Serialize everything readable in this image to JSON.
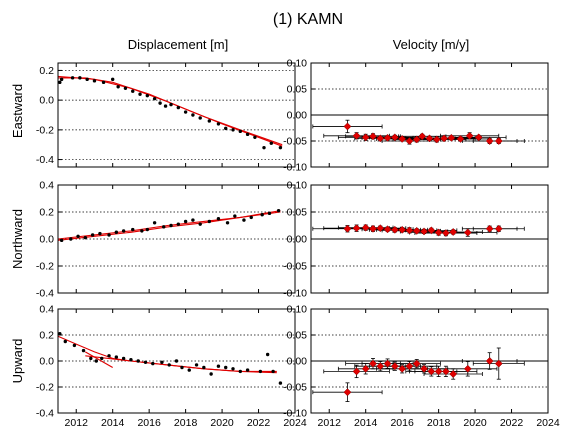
{
  "title": "(1) KAMN",
  "column_titles": [
    "Displacement [m]",
    "Velocity [m/y]"
  ],
  "row_labels": [
    "Eastward",
    "Northward",
    "Upward"
  ],
  "colors": {
    "points": "#000000",
    "fit": "#e00000",
    "marker": "#e00000",
    "errorbar": "#000000"
  },
  "chart_data": [
    {
      "type": "scatter",
      "panel": "Eastward displacement",
      "row": "Eastward",
      "column": "Displacement [m]",
      "xlim": [
        2011,
        2024
      ],
      "ylim": [
        -0.45,
        0.25
      ],
      "xticks": [
        2012,
        2014,
        2016,
        2018,
        2020,
        2022,
        2024
      ],
      "yticks": [
        -0.4,
        -0.2,
        0.0,
        0.2
      ],
      "ytick_labels": [
        "-0.4",
        "-0.2",
        "0.0",
        "0.2"
      ],
      "points": [
        [
          2011.1,
          0.12
        ],
        [
          2011.2,
          0.14
        ],
        [
          2011.8,
          0.15
        ],
        [
          2012.2,
          0.15
        ],
        [
          2012.6,
          0.14
        ],
        [
          2013.0,
          0.13
        ],
        [
          2013.5,
          0.12
        ],
        [
          2014.0,
          0.14
        ],
        [
          2014.3,
          0.09
        ],
        [
          2014.7,
          0.08
        ],
        [
          2015.1,
          0.06
        ],
        [
          2015.5,
          0.04
        ],
        [
          2015.9,
          0.03
        ],
        [
          2016.3,
          0.01
        ],
        [
          2016.6,
          -0.02
        ],
        [
          2016.9,
          -0.04
        ],
        [
          2017.2,
          -0.03
        ],
        [
          2017.6,
          -0.05
        ],
        [
          2018.0,
          -0.08
        ],
        [
          2018.4,
          -0.1
        ],
        [
          2018.8,
          -0.12
        ],
        [
          2019.3,
          -0.14
        ],
        [
          2019.8,
          -0.16
        ],
        [
          2020.2,
          -0.19
        ],
        [
          2020.6,
          -0.2
        ],
        [
          2021.0,
          -0.21
        ],
        [
          2021.4,
          -0.23
        ],
        [
          2021.8,
          -0.25
        ],
        [
          2022.3,
          -0.32
        ],
        [
          2022.7,
          -0.29
        ],
        [
          2023.2,
          -0.32
        ]
      ],
      "fits": [
        [
          [
            2011.0,
            0.15
          ],
          [
            2012.5,
            0.15
          ],
          [
            2014.0,
            0.12
          ],
          [
            2016.0,
            0.04
          ],
          [
            2018.0,
            -0.06
          ],
          [
            2020.0,
            -0.16
          ],
          [
            2022.0,
            -0.25
          ],
          [
            2023.3,
            -0.31
          ]
        ],
        [
          [
            2011.0,
            0.16
          ],
          [
            2013.0,
            0.14
          ],
          [
            2015.0,
            0.08
          ],
          [
            2017.0,
            -0.01
          ],
          [
            2019.0,
            -0.11
          ],
          [
            2021.0,
            -0.2
          ],
          [
            2023.3,
            -0.3
          ]
        ]
      ]
    },
    {
      "type": "scatter",
      "panel": "Eastward velocity",
      "row": "Eastward",
      "column": "Velocity [m/y]",
      "xlim": [
        2011,
        2024
      ],
      "ylim": [
        -0.1,
        0.1
      ],
      "xticks": [
        2012,
        2014,
        2016,
        2018,
        2020,
        2022,
        2024
      ],
      "yticks": [
        -0.1,
        -0.05,
        0.0,
        0.05,
        0.1
      ],
      "ytick_labels": [
        "-0.10",
        "-0.05",
        "0.00",
        "0.05",
        "0.10"
      ],
      "points": [
        [
          2013.0,
          -0.022
        ],
        [
          2013.5,
          -0.04
        ],
        [
          2014.0,
          -0.043
        ],
        [
          2014.4,
          -0.041
        ],
        [
          2014.8,
          -0.045
        ],
        [
          2015.2,
          -0.044
        ],
        [
          2015.6,
          -0.043
        ],
        [
          2016.0,
          -0.046
        ],
        [
          2016.4,
          -0.05
        ],
        [
          2016.8,
          -0.047
        ],
        [
          2017.1,
          -0.041
        ],
        [
          2017.5,
          -0.045
        ],
        [
          2017.9,
          -0.047
        ],
        [
          2018.3,
          -0.045
        ],
        [
          2018.7,
          -0.044
        ],
        [
          2019.2,
          -0.046
        ],
        [
          2019.7,
          -0.04
        ],
        [
          2020.2,
          -0.043
        ],
        [
          2020.8,
          -0.05
        ],
        [
          2021.3,
          -0.05
        ]
      ],
      "xerr": [
        1.9,
        1.8,
        1.5,
        1.5,
        1.4,
        1.4,
        1.4,
        1.4,
        1.5,
        1.3,
        1.3,
        1.4,
        1.6,
        1.7,
        1.6,
        1.6,
        1.6,
        1.5,
        1.5,
        1.4
      ],
      "yerr": [
        0.012,
        0.006,
        0.006,
        0.005,
        0.004,
        0.004,
        0.004,
        0.004,
        0.006,
        0.005,
        0.004,
        0.004,
        0.005,
        0.005,
        0.004,
        0.004,
        0.006,
        0.004,
        0.005,
        0.005
      ]
    },
    {
      "type": "scatter",
      "panel": "Northward displacement",
      "row": "Northward",
      "column": "Displacement [m]",
      "xlim": [
        2011,
        2024
      ],
      "ylim": [
        -0.4,
        0.4
      ],
      "xticks": [
        2012,
        2014,
        2016,
        2018,
        2020,
        2022,
        2024
      ],
      "yticks": [
        -0.4,
        -0.2,
        0.0,
        0.2,
        0.4
      ],
      "ytick_labels": [
        "-0.4",
        "-0.2",
        "0.0",
        "0.2",
        "0.4"
      ],
      "points": [
        [
          2011.2,
          -0.01
        ],
        [
          2011.7,
          0.0
        ],
        [
          2012.1,
          0.02
        ],
        [
          2012.5,
          0.01
        ],
        [
          2012.9,
          0.03
        ],
        [
          2013.3,
          0.04
        ],
        [
          2013.8,
          0.03
        ],
        [
          2014.2,
          0.05
        ],
        [
          2014.6,
          0.06
        ],
        [
          2015.1,
          0.07
        ],
        [
          2015.6,
          0.06
        ],
        [
          2015.9,
          0.07
        ],
        [
          2016.3,
          0.12
        ],
        [
          2016.8,
          0.09
        ],
        [
          2017.2,
          0.1
        ],
        [
          2017.6,
          0.11
        ],
        [
          2018.0,
          0.13
        ],
        [
          2018.4,
          0.14
        ],
        [
          2018.8,
          0.11
        ],
        [
          2019.3,
          0.13
        ],
        [
          2019.8,
          0.15
        ],
        [
          2020.3,
          0.12
        ],
        [
          2020.7,
          0.17
        ],
        [
          2021.2,
          0.14
        ],
        [
          2021.6,
          0.16
        ],
        [
          2022.2,
          0.18
        ],
        [
          2022.6,
          0.19
        ],
        [
          2023.1,
          0.21
        ]
      ],
      "fits": [
        [
          [
            2011.0,
            0.0
          ],
          [
            2013.0,
            0.03
          ],
          [
            2015.0,
            0.06
          ],
          [
            2017.0,
            0.1
          ],
          [
            2019.0,
            0.13
          ],
          [
            2021.0,
            0.16
          ],
          [
            2023.2,
            0.2
          ]
        ],
        [
          [
            2011.0,
            -0.01
          ],
          [
            2013.0,
            0.02
          ],
          [
            2015.0,
            0.05
          ],
          [
            2017.0,
            0.09
          ],
          [
            2019.0,
            0.12
          ],
          [
            2021.0,
            0.16
          ],
          [
            2023.2,
            0.21
          ]
        ]
      ]
    },
    {
      "type": "scatter",
      "panel": "Northward velocity",
      "row": "Northward",
      "column": "Velocity [m/y]",
      "xlim": [
        2011,
        2024
      ],
      "ylim": [
        -0.1,
        0.1
      ],
      "xticks": [
        2012,
        2014,
        2016,
        2018,
        2020,
        2022,
        2024
      ],
      "yticks": [
        -0.1,
        -0.05,
        0.0,
        0.05,
        0.1
      ],
      "ytick_labels": [
        "-0.10",
        "-0.05",
        "0.00",
        "0.05",
        "0.10"
      ],
      "points": [
        [
          2013.0,
          0.019
        ],
        [
          2013.5,
          0.02
        ],
        [
          2014.0,
          0.021
        ],
        [
          2014.4,
          0.019
        ],
        [
          2014.8,
          0.02
        ],
        [
          2015.2,
          0.018
        ],
        [
          2015.6,
          0.017
        ],
        [
          2016.0,
          0.017
        ],
        [
          2016.4,
          0.016
        ],
        [
          2016.8,
          0.015
        ],
        [
          2017.2,
          0.014
        ],
        [
          2017.6,
          0.016
        ],
        [
          2018.0,
          0.012
        ],
        [
          2018.4,
          0.011
        ],
        [
          2018.8,
          0.013
        ],
        [
          2019.6,
          0.012
        ],
        [
          2020.8,
          0.019
        ],
        [
          2021.3,
          0.019
        ]
      ],
      "xerr": [
        1.9,
        1.8,
        1.5,
        1.5,
        1.4,
        1.4,
        1.4,
        1.4,
        1.5,
        1.3,
        1.3,
        1.4,
        1.6,
        1.7,
        1.6,
        1.6,
        1.5,
        1.4
      ],
      "yerr": [
        0.006,
        0.006,
        0.005,
        0.005,
        0.004,
        0.004,
        0.004,
        0.004,
        0.005,
        0.004,
        0.004,
        0.004,
        0.005,
        0.005,
        0.004,
        0.007,
        0.005,
        0.005
      ]
    },
    {
      "type": "scatter",
      "panel": "Upward displacement",
      "row": "Upward",
      "column": "Displacement [m]",
      "xlim": [
        2011,
        2024
      ],
      "ylim": [
        -0.4,
        0.4
      ],
      "xticks": [
        2012,
        2014,
        2016,
        2018,
        2020,
        2022,
        2024
      ],
      "yticks": [
        -0.4,
        -0.2,
        0.0,
        0.2,
        0.4
      ],
      "ytick_labels": [
        "-0.4",
        "-0.2",
        "0.0",
        "0.2",
        "0.4"
      ],
      "points": [
        [
          2011.1,
          0.21
        ],
        [
          2011.4,
          0.15
        ],
        [
          2011.9,
          0.12
        ],
        [
          2012.4,
          0.08
        ],
        [
          2012.8,
          0.02
        ],
        [
          2013.1,
          0.0
        ],
        [
          2013.4,
          0.02
        ],
        [
          2013.8,
          0.04
        ],
        [
          2014.2,
          0.03
        ],
        [
          2014.6,
          0.02
        ],
        [
          2015.0,
          0.01
        ],
        [
          2015.4,
          0.0
        ],
        [
          2015.8,
          -0.01
        ],
        [
          2016.2,
          -0.02
        ],
        [
          2016.7,
          -0.01
        ],
        [
          2017.1,
          -0.03
        ],
        [
          2017.5,
          0.0
        ],
        [
          2017.8,
          -0.05
        ],
        [
          2018.2,
          -0.07
        ],
        [
          2018.6,
          -0.03
        ],
        [
          2019.0,
          -0.05
        ],
        [
          2019.4,
          -0.1
        ],
        [
          2019.8,
          -0.04
        ],
        [
          2020.2,
          -0.05
        ],
        [
          2020.6,
          -0.06
        ],
        [
          2021.0,
          -0.08
        ],
        [
          2021.4,
          -0.07
        ],
        [
          2022.1,
          -0.08
        ],
        [
          2022.5,
          0.05
        ],
        [
          2022.8,
          -0.08
        ],
        [
          2023.2,
          -0.17
        ]
      ],
      "fits": [
        [
          [
            2011.0,
            0.19
          ],
          [
            2012.0,
            0.13
          ],
          [
            2013.0,
            0.07
          ],
          [
            2014.0,
            0.02
          ],
          [
            2015.0,
            0.0
          ],
          [
            2017.0,
            -0.03
          ],
          [
            2019.0,
            -0.06
          ],
          [
            2021.0,
            -0.08
          ],
          [
            2023.0,
            -0.09
          ]
        ],
        [
          [
            2012.5,
            0.07
          ],
          [
            2014.0,
            -0.05
          ]
        ],
        [
          [
            2012.5,
            0.04
          ],
          [
            2015.0,
            0.0
          ],
          [
            2017.0,
            -0.03
          ],
          [
            2019.0,
            -0.06
          ],
          [
            2021.0,
            -0.08
          ],
          [
            2023.0,
            -0.08
          ]
        ]
      ]
    },
    {
      "type": "scatter",
      "panel": "Upward velocity",
      "row": "Upward",
      "column": "Velocity [m/y]",
      "xlim": [
        2011,
        2024
      ],
      "ylim": [
        -0.1,
        0.1
      ],
      "xticks": [
        2012,
        2014,
        2016,
        2018,
        2020,
        2022,
        2024
      ],
      "yticks": [
        -0.1,
        -0.05,
        0.0,
        0.05,
        0.1
      ],
      "ytick_labels": [
        "-0.10",
        "-0.05",
        "0.00",
        "0.05",
        "0.10"
      ],
      "points": [
        [
          2013.0,
          -0.06
        ],
        [
          2013.5,
          -0.02
        ],
        [
          2014.0,
          -0.015
        ],
        [
          2014.4,
          -0.005
        ],
        [
          2014.8,
          -0.01
        ],
        [
          2015.2,
          -0.005
        ],
        [
          2015.6,
          -0.01
        ],
        [
          2016.0,
          -0.015
        ],
        [
          2016.4,
          -0.01
        ],
        [
          2016.8,
          -0.005
        ],
        [
          2017.2,
          -0.015
        ],
        [
          2017.6,
          -0.02
        ],
        [
          2018.0,
          -0.02
        ],
        [
          2018.4,
          -0.02
        ],
        [
          2018.8,
          -0.025
        ],
        [
          2019.6,
          -0.015
        ],
        [
          2020.8,
          0.0
        ],
        [
          2021.3,
          -0.005
        ]
      ],
      "xerr": [
        1.9,
        1.8,
        1.5,
        1.5,
        1.4,
        1.4,
        1.4,
        1.4,
        1.5,
        1.3,
        1.3,
        1.4,
        1.6,
        1.7,
        1.6,
        1.6,
        1.5,
        1.4
      ],
      "yerr": [
        0.018,
        0.012,
        0.01,
        0.01,
        0.009,
        0.009,
        0.008,
        0.008,
        0.009,
        0.008,
        0.008,
        0.009,
        0.01,
        0.01,
        0.01,
        0.014,
        0.016,
        0.03
      ]
    }
  ]
}
